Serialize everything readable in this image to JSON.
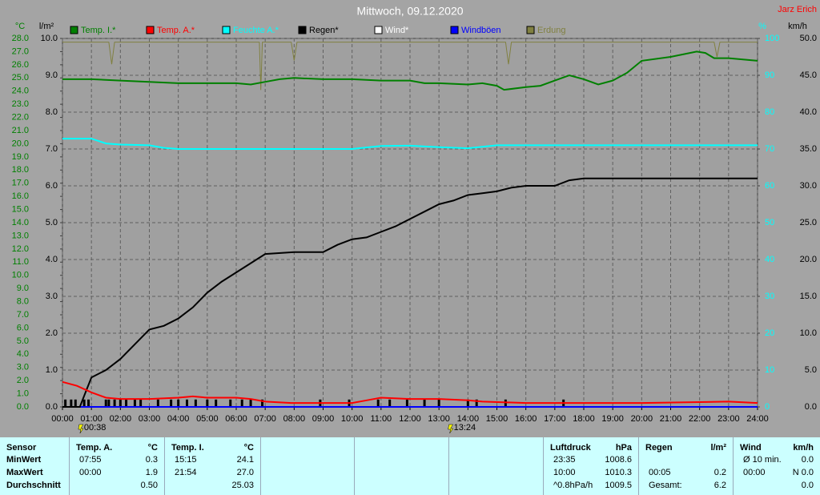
{
  "chart_data": {
    "type": "line",
    "title": "Mittwoch, 09.12.2020",
    "author": "Jarz Erich",
    "xlim": [
      0,
      24
    ],
    "xticks": [
      {
        "value": 0,
        "label": "00:00"
      },
      {
        "value": 1,
        "label": "01:00"
      },
      {
        "value": 2,
        "label": "02:00"
      },
      {
        "value": 3,
        "label": "03:00"
      },
      {
        "value": 4,
        "label": "04:00"
      },
      {
        "value": 5,
        "label": "05:00"
      },
      {
        "value": 6,
        "label": "06:00"
      },
      {
        "value": 7,
        "label": "07:00"
      },
      {
        "value": 8,
        "label": "08:00"
      },
      {
        "value": 9,
        "label": "09:00"
      },
      {
        "value": 10,
        "label": "10:00"
      },
      {
        "value": 11,
        "label": "11:00"
      },
      {
        "value": 12,
        "label": "12:00"
      },
      {
        "value": 13,
        "label": "13:00"
      },
      {
        "value": 14,
        "label": "14:00"
      },
      {
        "value": 15,
        "label": "15:00"
      },
      {
        "value": 16,
        "label": "16:00"
      },
      {
        "value": 17,
        "label": "17:00"
      },
      {
        "value": 18,
        "label": "18:00"
      },
      {
        "value": 19,
        "label": "19:00"
      },
      {
        "value": 20,
        "label": "20:00"
      },
      {
        "value": 21,
        "label": "21:00"
      },
      {
        "value": 22,
        "label": "22:00"
      },
      {
        "value": 23,
        "label": "23:00"
      },
      {
        "value": 24,
        "label": "24:00"
      }
    ],
    "grid": true,
    "axes": [
      {
        "label": "°C",
        "color": "#008000",
        "side": "left",
        "lim": [
          0,
          28
        ],
        "ticks": [
          {
            "value": 0,
            "label": "0.0"
          },
          {
            "value": 1,
            "label": "1.0"
          },
          {
            "value": 2,
            "label": "2.0"
          },
          {
            "value": 3,
            "label": "3.0"
          },
          {
            "value": 4,
            "label": "4.0"
          },
          {
            "value": 5,
            "label": "5.0"
          },
          {
            "value": 6,
            "label": "6.0"
          },
          {
            "value": 7,
            "label": "7.0"
          },
          {
            "value": 8,
            "label": "8.0"
          },
          {
            "value": 9,
            "label": "9.0"
          },
          {
            "value": 10,
            "label": "10.0"
          },
          {
            "value": 11,
            "label": "11.0"
          },
          {
            "value": 12,
            "label": "12.0"
          },
          {
            "value": 13,
            "label": "13.0"
          },
          {
            "value": 14,
            "label": "14.0"
          },
          {
            "value": 15,
            "label": "15.0"
          },
          {
            "value": 16,
            "label": "16.0"
          },
          {
            "value": 17,
            "label": "17.0"
          },
          {
            "value": 18,
            "label": "18.0"
          },
          {
            "value": 19,
            "label": "19.0"
          },
          {
            "value": 20,
            "label": "20.0"
          },
          {
            "value": 21,
            "label": "21.0"
          },
          {
            "value": 22,
            "label": "22.0"
          },
          {
            "value": 23,
            "label": "23.0"
          },
          {
            "value": 24,
            "label": "24.0"
          },
          {
            "value": 25,
            "label": "25.0"
          },
          {
            "value": 26,
            "label": "26.0"
          },
          {
            "value": 27,
            "label": "27.0"
          },
          {
            "value": 28,
            "label": "28.0"
          }
        ]
      },
      {
        "label": "l/m²",
        "color": "#000000",
        "side": "left",
        "lim": [
          0,
          10
        ],
        "ticks": [
          {
            "value": 0,
            "label": "0.0"
          },
          {
            "value": 1,
            "label": "1.0"
          },
          {
            "value": 2,
            "label": "2.0"
          },
          {
            "value": 3,
            "label": "3.0"
          },
          {
            "value": 4,
            "label": "4.0"
          },
          {
            "value": 5,
            "label": "5.0"
          },
          {
            "value": 6,
            "label": "6.0"
          },
          {
            "value": 7,
            "label": "7.0"
          },
          {
            "value": 8,
            "label": "8.0"
          },
          {
            "value": 9,
            "label": "9.0"
          },
          {
            "value": 10,
            "label": "10.0"
          }
        ]
      },
      {
        "label": "%",
        "color": "#00ffff",
        "side": "right",
        "lim": [
          0,
          100
        ],
        "ticks": [
          0,
          10,
          20,
          30,
          40,
          50,
          60,
          70,
          80,
          90,
          100
        ]
      },
      {
        "label": "km/h",
        "color": "#000000",
        "side": "right",
        "lim": [
          0,
          50
        ],
        "ticks": [
          {
            "value": 0,
            "label": "0.0"
          },
          {
            "value": 5,
            "label": "5.0"
          },
          {
            "value": 10,
            "label": "10.0"
          },
          {
            "value": 15,
            "label": "15.0"
          },
          {
            "value": 20,
            "label": "20.0"
          },
          {
            "value": 25,
            "label": "25.0"
          },
          {
            "value": 30,
            "label": "30.0"
          },
          {
            "value": 35,
            "label": "35.0"
          },
          {
            "value": 40,
            "label": "40.0"
          },
          {
            "value": 45,
            "label": "45.0"
          },
          {
            "value": 50,
            "label": "50.0"
          }
        ]
      }
    ],
    "series": [
      {
        "name": "Temp. I.*",
        "color": "#008000",
        "axis": 0,
        "x": [
          0,
          1,
          2,
          3,
          4,
          5,
          6,
          6.5,
          7,
          7.5,
          8,
          9,
          10,
          11,
          12,
          12.5,
          13,
          14,
          14.5,
          15,
          15.25,
          16,
          16.5,
          17,
          17.5,
          18,
          18.5,
          19,
          19.5,
          20,
          21,
          21.9,
          22.2,
          22.5,
          23,
          24
        ],
        "values": [
          24.9,
          24.9,
          24.8,
          24.7,
          24.6,
          24.6,
          24.6,
          24.5,
          24.7,
          24.9,
          25.0,
          24.9,
          24.9,
          24.8,
          24.8,
          24.6,
          24.6,
          24.5,
          24.6,
          24.4,
          24.1,
          24.3,
          24.4,
          24.8,
          25.2,
          24.9,
          24.5,
          24.8,
          25.4,
          26.3,
          26.6,
          27.0,
          26.9,
          26.5,
          26.5,
          26.3
        ]
      },
      {
        "name": "Temp. A.*",
        "color": "#ff0000",
        "axis": 0,
        "x": [
          0,
          0.5,
          1,
          1.5,
          2,
          3,
          4,
          4.5,
          5,
          6,
          6.5,
          7,
          7.9,
          9,
          10,
          10.5,
          11,
          12,
          13,
          14,
          14.5,
          16,
          17,
          20,
          23,
          24
        ],
        "values": [
          1.9,
          1.6,
          1.1,
          0.7,
          0.6,
          0.6,
          0.7,
          0.8,
          0.7,
          0.7,
          0.6,
          0.4,
          0.3,
          0.3,
          0.3,
          0.5,
          0.7,
          0.6,
          0.6,
          0.5,
          0.4,
          0.3,
          0.3,
          0.3,
          0.4,
          0.3
        ]
      },
      {
        "name": "Feuchte A.*",
        "color": "#00ffff",
        "axis": 2,
        "x": [
          0,
          1,
          1.5,
          2,
          3,
          3.5,
          4,
          6,
          8,
          10,
          11,
          12,
          13,
          14,
          15,
          16,
          18,
          20,
          22,
          24
        ],
        "values": [
          72.8,
          72.8,
          71.5,
          71.2,
          71,
          70.3,
          70,
          70,
          70,
          70,
          70.8,
          70.9,
          70.5,
          70.2,
          71,
          71,
          71,
          71,
          71,
          71
        ]
      },
      {
        "name": "Regen*",
        "color": "#000000",
        "axis": 1,
        "x": [
          0,
          0.6,
          0.8,
          1,
          1.5,
          2,
          2.5,
          3,
          3.5,
          4,
          4.5,
          5,
          5.5,
          6,
          6.5,
          7,
          8,
          9,
          9.5,
          10,
          10.5,
          11,
          11.5,
          12,
          12.5,
          13,
          13.5,
          14,
          14.5,
          15,
          15.5,
          16,
          17,
          17.5,
          18,
          24
        ],
        "values": [
          0,
          0,
          0.4,
          0.8,
          1.0,
          1.3,
          1.7,
          2.1,
          2.2,
          2.4,
          2.7,
          3.1,
          3.4,
          3.65,
          3.9,
          4.15,
          4.2,
          4.2,
          4.4,
          4.55,
          4.6,
          4.75,
          4.9,
          5.1,
          5.3,
          5.5,
          5.6,
          5.75,
          5.8,
          5.85,
          5.95,
          6.0,
          6.0,
          6.15,
          6.2,
          6.2
        ]
      },
      {
        "name": "Wind*",
        "color": "#ffffff",
        "axis": 3,
        "x": [
          0,
          24
        ],
        "values": [
          0,
          0
        ]
      },
      {
        "name": "Windböen",
        "color": "#0000ff",
        "axis": 3,
        "x": [
          0,
          24
        ],
        "values": [
          0,
          0
        ]
      },
      {
        "name": "Erdung",
        "color": "#808040",
        "axis": 2,
        "x": [
          0,
          1.6,
          1.7,
          1.8,
          3,
          5,
          6.8,
          6.85,
          6.9,
          7.9,
          8,
          8.1,
          12,
          15.3,
          15.4,
          15.5,
          20,
          22.5,
          22.6,
          22.7,
          24
        ],
        "values": [
          99,
          99,
          93,
          99,
          99,
          99,
          99,
          86,
          99,
          99,
          94,
          99,
          99,
          99,
          93,
          99,
          99,
          99,
          95,
          99,
          99
        ]
      }
    ],
    "rain_increments": {
      "color": "#000000",
      "axis": 1,
      "x": [
        0.1,
        0.3,
        0.45,
        0.75,
        0.9,
        1.5,
        1.6,
        1.8,
        2.0,
        2.2,
        2.5,
        2.7,
        3.3,
        3.75,
        4.0,
        4.3,
        4.6,
        5.0,
        5.3,
        5.8,
        6.2,
        6.5,
        6.9,
        8.9,
        9.9,
        10.9,
        11.3,
        11.9,
        12.5,
        13.0,
        14.0,
        14.3,
        15.3,
        17.3
      ],
      "values": [
        0.2,
        0.2,
        0.2,
        0.2,
        0.2,
        0.2,
        0.2,
        0.2,
        0.2,
        0.2,
        0.2,
        0.2,
        0.2,
        0.2,
        0.2,
        0.2,
        0.2,
        0.2,
        0.2,
        0.2,
        0.2,
        0.2,
        0.2,
        0.2,
        0.2,
        0.2,
        0.2,
        0.2,
        0.2,
        0.2,
        0.2,
        0.2,
        0.2,
        0.2
      ]
    },
    "annotations": [
      {
        "x": 0.633,
        "label": "00:38"
      },
      {
        "x": 13.4,
        "label": "13:24"
      }
    ]
  },
  "stats": {
    "row_labels": [
      "Sensor",
      "MinWert",
      "MaxWert",
      "Durchschnitt"
    ],
    "columns": [
      {
        "title": "Temp. A.",
        "unit": "°C",
        "rows": [
          [
            "07:55",
            "0.3"
          ],
          [
            "00:00",
            "1.9"
          ],
          [
            null,
            "0.50"
          ]
        ]
      },
      {
        "title": "Temp. I.",
        "unit": "°C",
        "rows": [
          [
            "15:15",
            "24.1"
          ],
          [
            "21:54",
            "27.0"
          ],
          [
            null,
            "25.03"
          ]
        ]
      },
      {
        "title": "Luftdruck",
        "unit": "hPa",
        "rows": [
          [
            "23:35",
            "1008.6"
          ],
          [
            "10:00",
            "1010.3"
          ],
          [
            "^0.8hPa/h",
            "1009.5"
          ]
        ]
      },
      {
        "title": "Regen",
        "unit": "l/m²",
        "rows": [
          [
            null,
            null
          ],
          [
            "00:05",
            "0.2"
          ],
          [
            "Gesamt:",
            "6.2"
          ]
        ]
      },
      {
        "title": "Wind",
        "unit": "km/h",
        "rows": [
          [
            "Ø 10 min.",
            "0.0"
          ],
          [
            "00:00",
            "N 0.0"
          ],
          [
            null,
            "0.0"
          ]
        ]
      }
    ]
  }
}
